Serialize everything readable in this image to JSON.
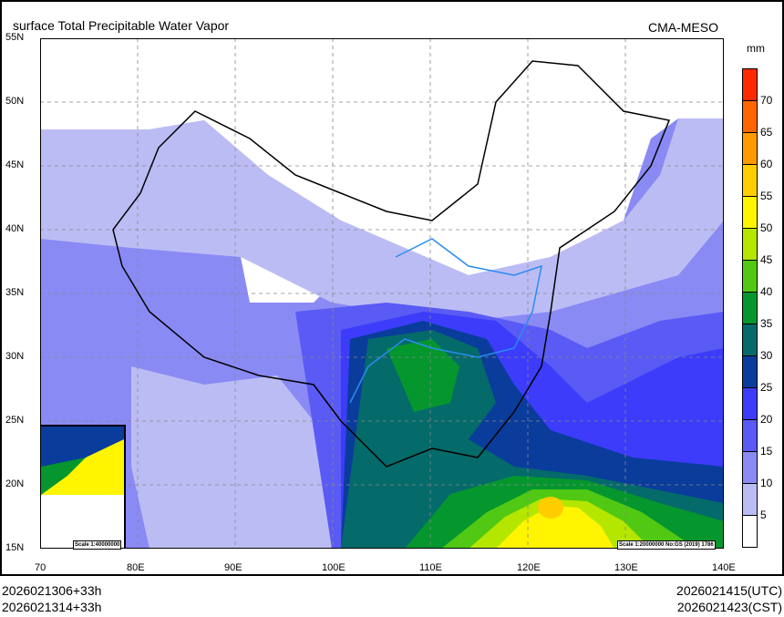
{
  "title": "surface Total Precipitable Water Vapor",
  "source": "CMA-MESO",
  "colorbar": {
    "unit": "mm",
    "labels": [
      "5",
      "10",
      "15",
      "20",
      "25",
      "30",
      "35",
      "40",
      "45",
      "50",
      "55",
      "60",
      "65",
      "70"
    ],
    "colors_bottom_to_top": [
      "#ffffff",
      "#bcbcf5",
      "#8a8af5",
      "#5a5af5",
      "#3c3cfa",
      "#0a3c9c",
      "#056a6a",
      "#05962e",
      "#50c814",
      "#b4e600",
      "#fff500",
      "#ffcd00",
      "#ff9900",
      "#ff6600",
      "#ff2a00"
    ]
  },
  "axes": {
    "lat_labels": [
      "55N",
      "50N",
      "45N",
      "40N",
      "35N",
      "30N",
      "25N",
      "20N",
      "15N"
    ],
    "lon_labels": [
      "70",
      "80E",
      "90E",
      "100E",
      "110E",
      "120E",
      "130E",
      "140E"
    ]
  },
  "inset_scale": "Scale 1:40000000",
  "map_scale": "Scale 1:20000000 No:GS (2019) 1786",
  "footer": {
    "init_utc": "2026021306+33h",
    "init_cst": "2026021314+33h",
    "valid_utc": "2026021415(UTC)",
    "valid_cst": "2026021423(CST)"
  }
}
